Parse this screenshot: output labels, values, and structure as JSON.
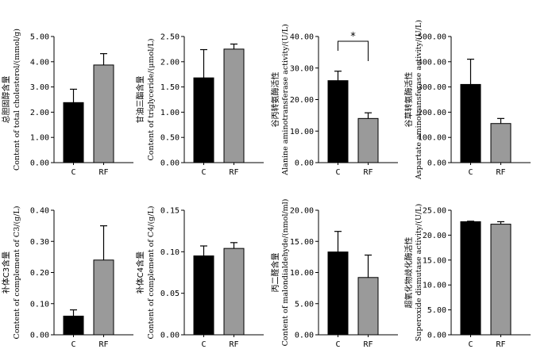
{
  "chart_data": [
    {
      "type": "bar",
      "ylabel_zh": "总胆固醇含量",
      "ylabel_en": "Content of total cholesterol/(mmol/g)",
      "categories": [
        "C",
        "RF"
      ],
      "values": [
        2.38,
        3.87
      ],
      "errors": [
        0.53,
        0.45
      ],
      "colors": [
        "#000000",
        "#9a9a9a"
      ],
      "ylim": [
        0,
        5
      ],
      "ticks": [
        "0.00",
        "1.00",
        "2.00",
        "3.00",
        "4.00",
        "5.00"
      ],
      "significance": ""
    },
    {
      "type": "bar",
      "ylabel_zh": "甘油三酯含量",
      "ylabel_en": "Content of triglyceride/(μmol/L)",
      "categories": [
        "C",
        "RF"
      ],
      "values": [
        1.68,
        2.25
      ],
      "errors": [
        0.56,
        0.1
      ],
      "colors": [
        "#000000",
        "#9a9a9a"
      ],
      "ylim": [
        0,
        2.5
      ],
      "ticks": [
        "0.00",
        "0.50",
        "1.00",
        "1.50",
        "2.00",
        "2.50"
      ],
      "significance": ""
    },
    {
      "type": "bar",
      "ylabel_zh": "谷丙转氨酶活性",
      "ylabel_en": "Alanine aminotransferase activity/(U/L)",
      "categories": [
        "C",
        "RF"
      ],
      "values": [
        26.0,
        14.0
      ],
      "errors": [
        3.0,
        1.8
      ],
      "colors": [
        "#000000",
        "#9a9a9a"
      ],
      "ylim": [
        0,
        40
      ],
      "ticks": [
        "0.00",
        "10.00",
        "20.00",
        "30.00",
        "40.00"
      ],
      "significance": "*"
    },
    {
      "type": "bar",
      "ylabel_zh": "谷草转氨酶活性",
      "ylabel_en": "Aspartate aminotransferase activity/(U/L)",
      "categories": [
        "C",
        "RF"
      ],
      "values": [
        310,
        155
      ],
      "errors": [
        100,
        20
      ],
      "colors": [
        "#000000",
        "#9a9a9a"
      ],
      "ylim": [
        0,
        500
      ],
      "ticks": [
        "0.00",
        "100.00",
        "200.00",
        "300.00",
        "400.00",
        "500.00"
      ],
      "significance": ""
    },
    {
      "type": "bar",
      "ylabel_zh": "补体C3含量",
      "ylabel_en": "Content of complement of C3/(g/L)",
      "categories": [
        "C",
        "RF"
      ],
      "values": [
        0.06,
        0.24
      ],
      "errors": [
        0.02,
        0.11
      ],
      "colors": [
        "#000000",
        "#9a9a9a"
      ],
      "ylim": [
        0,
        0.4
      ],
      "ticks": [
        "0.00",
        "0.10",
        "0.20",
        "0.30",
        "0.40"
      ],
      "significance": ""
    },
    {
      "type": "bar",
      "ylabel_zh": "补体C4含量",
      "ylabel_en": "Content of complement of C4/(g/L)",
      "categories": [
        "C",
        "RF"
      ],
      "values": [
        0.095,
        0.104
      ],
      "errors": [
        0.012,
        0.007
      ],
      "colors": [
        "#000000",
        "#9a9a9a"
      ],
      "ylim": [
        0,
        0.15
      ],
      "ticks": [
        "0.00",
        "0.05",
        "0.10",
        "0.15"
      ],
      "significance": ""
    },
    {
      "type": "bar",
      "ylabel_zh": "丙二醛含量",
      "ylabel_en": "Content of malondialdehyde/(nmol/ml)",
      "categories": [
        "C",
        "RF"
      ],
      "values": [
        13.3,
        9.2
      ],
      "errors": [
        3.3,
        3.6
      ],
      "colors": [
        "#000000",
        "#9a9a9a"
      ],
      "ylim": [
        0,
        20
      ],
      "ticks": [
        "0.00",
        "5.00",
        "10.00",
        "15.00",
        "20.00"
      ],
      "significance": ""
    },
    {
      "type": "bar",
      "ylabel_zh": "超氧化物歧化酶活性",
      "ylabel_en": "Superoxide dismutase activity/(U/L)",
      "categories": [
        "C",
        "RF"
      ],
      "values": [
        22.7,
        22.2
      ],
      "errors": [
        0.1,
        0.5
      ],
      "colors": [
        "#000000",
        "#9a9a9a"
      ],
      "ylim": [
        0,
        25
      ],
      "ticks": [
        "0.00",
        "5.00",
        "10.00",
        "15.00",
        "20.00",
        "25.00"
      ],
      "significance": ""
    }
  ]
}
